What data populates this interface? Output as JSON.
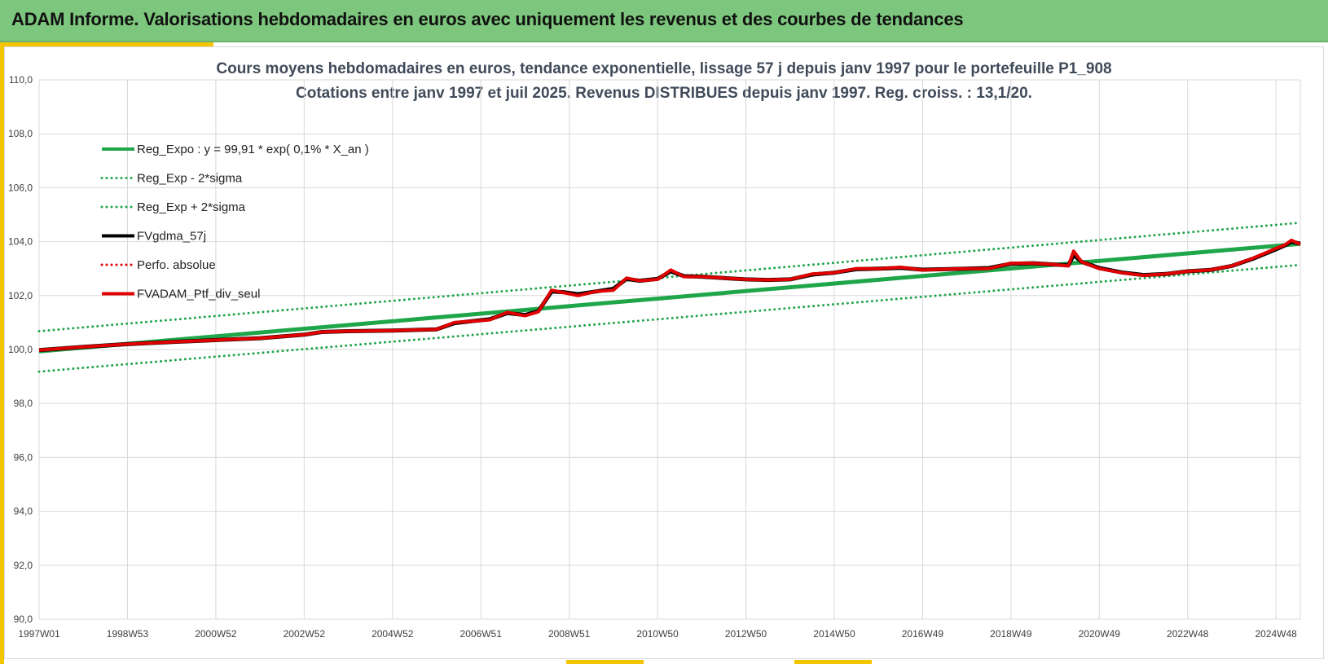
{
  "header": {
    "title": "ADAM Informe. Valorisations hebdomadaires en euros avec uniquement les revenus et des courbes de tendances"
  },
  "colors": {
    "header_bg": "#7dc67d",
    "accent": "#f5c400",
    "regression": "#1fa64a",
    "regression_band": "#1fa64a",
    "fvgdma": "#000000",
    "perf": "#e00000",
    "fvadam": "#e00000"
  },
  "chart_data": {
    "type": "line",
    "title_line1": "Cours moyens hebdomadaires  en euros, tendance exponentielle, lissage 57 j depuis janv 1997 pour le portefeuille P1_908",
    "title_line2": "Cotations entre janv 1997 et juil 2025. Revenus DISTRIBUES depuis janv 1997. Reg. croiss. : 13,1/20.",
    "ylim": [
      90.0,
      110.0
    ],
    "y_ticks": [
      "90,0",
      "92,0",
      "94,0",
      "96,0",
      "98,0",
      "100,0",
      "102,0",
      "104,0",
      "106,0",
      "108,0",
      "110,0"
    ],
    "x_ticks": [
      "1997W01",
      "1998W53",
      "2000W52",
      "2002W52",
      "2004W52",
      "2006W51",
      "2008W51",
      "2010W50",
      "2012W50",
      "2014W50",
      "2016W49",
      "2018W49",
      "2020W49",
      "2022W48",
      "2024W48"
    ],
    "x_range_years": [
      1997.0,
      2025.55
    ],
    "grid": true,
    "legend_position": "top-left",
    "legend": [
      {
        "label": "Reg_Expo : y = 99,91 * exp( 0,1% *  X_an )",
        "style": "solid",
        "color": "#1fa64a"
      },
      {
        "label": "Reg_Exp - 2*sigma",
        "style": "dotted",
        "color": "#1fa64a"
      },
      {
        "label": "Reg_Exp + 2*sigma",
        "style": "dotted",
        "color": "#1fa64a"
      },
      {
        "label": "FVgdma_57j",
        "style": "solid",
        "color": "#000000"
      },
      {
        "label": "Perfo. absolue",
        "style": "dotted",
        "color": "#e00000"
      },
      {
        "label": "FVADAM_Ptf_div_seul",
        "style": "solid",
        "color": "#e00000"
      }
    ],
    "series": [
      {
        "name": "Reg_Expo : y = 99,91 * exp( 0,1% *  X_an )",
        "x": [
          1997.0,
          2025.55
        ],
        "y": [
          99.93,
          103.92
        ]
      },
      {
        "name": "Reg_Exp - 2*sigma",
        "x": [
          1997.0,
          2025.55
        ],
        "y": [
          99.18,
          103.14
        ]
      },
      {
        "name": "Reg_Exp + 2*sigma",
        "x": [
          1997.0,
          2025.55
        ],
        "y": [
          100.68,
          104.7
        ]
      },
      {
        "name": "FVADAM_Ptf_div_seul",
        "x": [
          1997.0,
          1998.0,
          1999.0,
          2000.0,
          2001.0,
          2002.0,
          2003.0,
          2003.4,
          2004.0,
          2005.0,
          2006.0,
          2006.4,
          2006.8,
          2007.2,
          2007.6,
          2008.0,
          2008.3,
          2008.6,
          2008.9,
          2009.2,
          2009.6,
          2010.0,
          2010.3,
          2010.6,
          2011.0,
          2011.3,
          2011.6,
          2012.0,
          2012.5,
          2013.0,
          2013.5,
          2014.0,
          2014.5,
          2015.0,
          2015.5,
          2016.0,
          2016.5,
          2017.0,
          2017.5,
          2018.0,
          2018.5,
          2019.0,
          2019.5,
          2020.0,
          2020.3,
          2020.42,
          2020.6,
          2021.0,
          2021.5,
          2022.0,
          2022.5,
          2023.0,
          2023.5,
          2024.0,
          2024.5,
          2025.0,
          2025.2,
          2025.35,
          2025.55
        ],
        "y": [
          99.98,
          100.1,
          100.2,
          100.28,
          100.35,
          100.42,
          100.55,
          100.65,
          100.68,
          100.7,
          100.75,
          101.0,
          101.05,
          101.1,
          101.38,
          101.25,
          101.4,
          102.2,
          102.1,
          102.0,
          102.15,
          102.2,
          102.65,
          102.55,
          102.6,
          102.95,
          102.7,
          102.7,
          102.65,
          102.6,
          102.58,
          102.6,
          102.8,
          102.85,
          103.0,
          103.0,
          103.05,
          102.95,
          102.98,
          103.0,
          103.0,
          103.2,
          103.2,
          103.15,
          103.1,
          103.65,
          103.25,
          103.0,
          102.85,
          102.75,
          102.8,
          102.9,
          102.95,
          103.1,
          103.4,
          103.75,
          103.88,
          104.05,
          103.9
        ]
      },
      {
        "name": "FVgdma_57j",
        "x": [
          1997.0,
          1998.0,
          1999.0,
          2000.0,
          2001.0,
          2002.0,
          2003.0,
          2003.4,
          2004.0,
          2005.0,
          2006.0,
          2006.4,
          2006.8,
          2007.2,
          2007.6,
          2008.0,
          2008.3,
          2008.6,
          2008.9,
          2009.2,
          2009.6,
          2010.0,
          2010.3,
          2010.6,
          2011.0,
          2011.3,
          2011.6,
          2012.0,
          2012.5,
          2013.0,
          2013.5,
          2014.0,
          2014.5,
          2015.0,
          2015.5,
          2016.0,
          2016.5,
          2017.0,
          2017.5,
          2018.0,
          2018.5,
          2019.0,
          2019.5,
          2020.0,
          2020.3,
          2020.42,
          2020.6,
          2021.0,
          2021.5,
          2022.0,
          2022.5,
          2023.0,
          2023.5,
          2024.0,
          2024.5,
          2025.0,
          2025.2,
          2025.35,
          2025.55
        ],
        "y": [
          99.98,
          100.1,
          100.2,
          100.28,
          100.35,
          100.42,
          100.55,
          100.65,
          100.68,
          100.7,
          100.75,
          100.98,
          101.05,
          101.12,
          101.35,
          101.28,
          101.42,
          102.15,
          102.12,
          102.05,
          102.15,
          102.25,
          102.62,
          102.55,
          102.62,
          102.9,
          102.72,
          102.7,
          102.65,
          102.6,
          102.58,
          102.6,
          102.78,
          102.85,
          102.98,
          103.0,
          103.03,
          102.96,
          102.98,
          103.0,
          103.02,
          103.18,
          103.2,
          103.15,
          103.12,
          103.5,
          103.25,
          103.02,
          102.86,
          102.76,
          102.8,
          102.9,
          102.95,
          103.1,
          103.38,
          103.72,
          103.86,
          104.0,
          103.92
        ]
      }
    ]
  }
}
